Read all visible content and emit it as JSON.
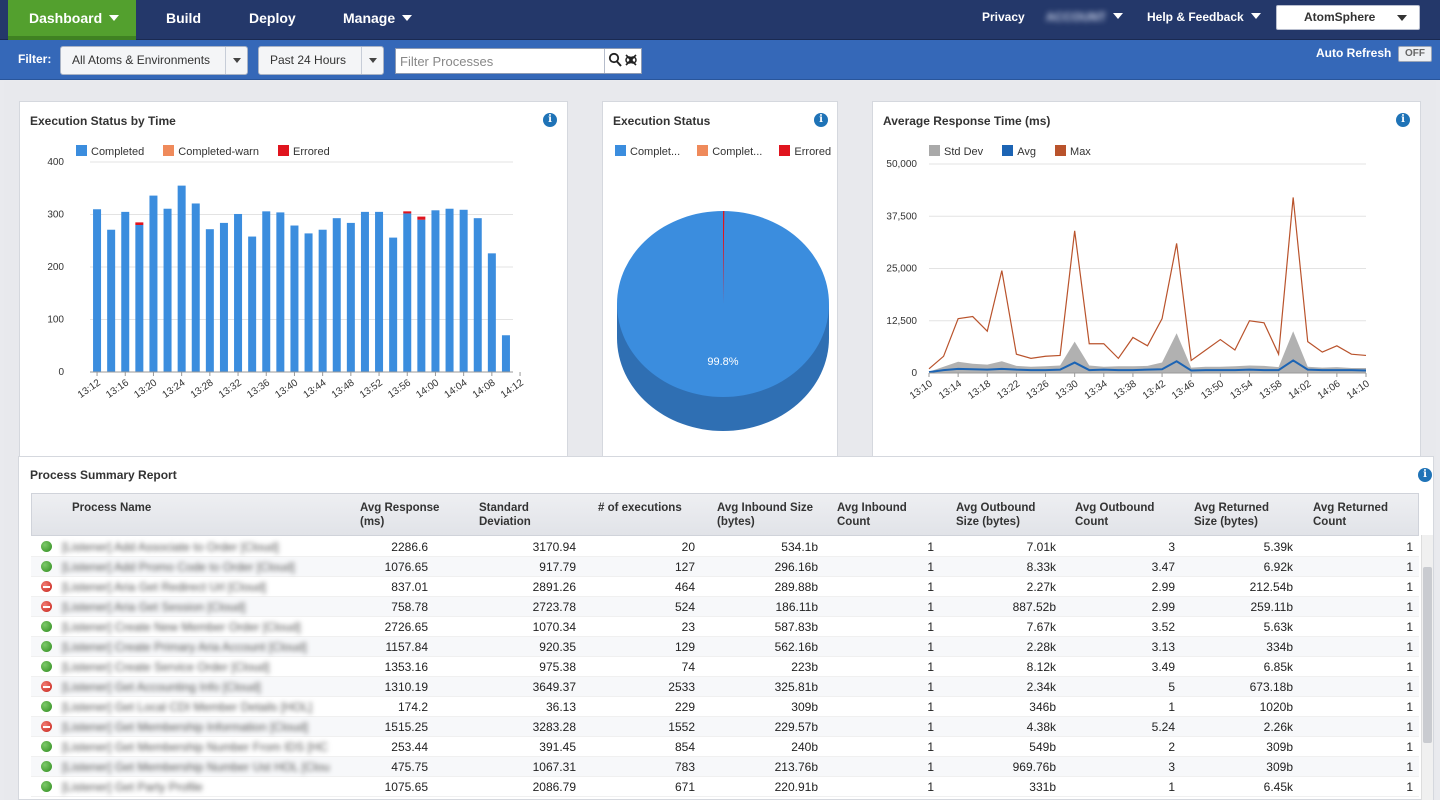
{
  "nav": {
    "dashboard": "Dashboard",
    "build": "Build",
    "deploy": "Deploy",
    "manage": "Manage",
    "privacy": "Privacy",
    "account_blurred": "ACCOUNT",
    "help": "Help & Feedback",
    "atomsphere": "AtomSphere"
  },
  "filter": {
    "label": "Filter:",
    "atoms": "All Atoms & Environments",
    "time": "Past 24 Hours",
    "search_placeholder": "Filter Processes",
    "auto_refresh": "Auto Refresh",
    "toggle": "OFF"
  },
  "colors": {
    "completed": "#3b8dde",
    "completed_warn": "#ef8a5b",
    "errored": "#e0141e",
    "std_dev": "#a9a9a9",
    "avg": "#1c64b4",
    "max": "#b9532c"
  },
  "panels": {
    "status_by_time_title": "Execution Status by Time",
    "status_title": "Execution Status",
    "response_title": "Average Response Time (ms)",
    "summary_title": "Process Summary Report",
    "info_glyph": "i"
  },
  "chart_data": [
    {
      "type": "bar",
      "title": "Execution Status by Time",
      "legend": [
        "Completed",
        "Completed-warn",
        "Errored"
      ],
      "ylim": [
        0,
        400
      ],
      "yticks": [
        "400",
        "300",
        "200",
        "100",
        "0"
      ],
      "xtick_labels": [
        "13:12",
        "13:16",
        "13:20",
        "13:24",
        "13:28",
        "13:32",
        "13:36",
        "13:40",
        "13:44",
        "13:48",
        "13:52",
        "13:56",
        "14:00",
        "14:04",
        "14:08",
        "14:12"
      ],
      "series": [
        {
          "name": "Completed",
          "values": [
            310,
            271,
            305,
            280,
            336,
            311,
            355,
            321,
            272,
            284,
            301,
            258,
            306,
            304,
            279,
            264,
            271,
            293,
            284,
            305,
            305,
            256,
            302,
            290,
            308,
            311,
            309,
            293,
            226,
            70
          ]
        },
        {
          "name": "Errored",
          "values": [
            0,
            0,
            0,
            5,
            0,
            0,
            0,
            0,
            0,
            0,
            0,
            0,
            0,
            0,
            0,
            0,
            0,
            0,
            0,
            0,
            0,
            0,
            4,
            6,
            0,
            0,
            0,
            0,
            0,
            0
          ]
        }
      ]
    },
    {
      "type": "pie",
      "title": "Execution Status",
      "legend": [
        "Complet...",
        "Complet...",
        "Errored"
      ],
      "slices": [
        {
          "name": "Completed",
          "value": 99.8,
          "label": "99.8%"
        },
        {
          "name": "Completed-warn",
          "value": 0.0,
          "label": ""
        },
        {
          "name": "Errored",
          "value": 0.2,
          "label": ""
        }
      ]
    },
    {
      "type": "line",
      "title": "Average Response Time (ms)",
      "legend": [
        "Std Dev",
        "Avg",
        "Max"
      ],
      "ylim": [
        0,
        50000
      ],
      "yticks": [
        "50,000",
        "37,500",
        "25,000",
        "12,500",
        "0"
      ],
      "xtick_labels": [
        "13:10",
        "13:14",
        "13:18",
        "13:22",
        "13:26",
        "13:30",
        "13:34",
        "13:38",
        "13:42",
        "13:46",
        "13:50",
        "13:54",
        "13:58",
        "14:02",
        "14:06",
        "14:10"
      ],
      "series": [
        {
          "name": "Max",
          "values": [
            1000,
            4000,
            13000,
            13500,
            10000,
            24500,
            4500,
            3500,
            4000,
            4200,
            34000,
            7000,
            7000,
            3500,
            8500,
            6500,
            13000,
            31000,
            3000,
            5500,
            8000,
            5500,
            12500,
            12000,
            4500,
            42000,
            7500,
            5000,
            6500,
            4500,
            4200
          ]
        },
        {
          "name": "Std Dev",
          "values": [
            300,
            1500,
            2700,
            2200,
            2000,
            2800,
            1700,
            1500,
            1600,
            1800,
            7500,
            1800,
            1500,
            1600,
            1600,
            1700,
            2500,
            9500,
            1300,
            1500,
            1500,
            1600,
            1800,
            1700,
            1400,
            10000,
            1500,
            1300,
            1400,
            1200,
            1200
          ]
        },
        {
          "name": "Avg",
          "values": [
            200,
            700,
            1000,
            900,
            800,
            1000,
            800,
            700,
            700,
            800,
            2500,
            700,
            800,
            700,
            700,
            800,
            900,
            2800,
            600,
            700,
            700,
            700,
            800,
            700,
            700,
            3000,
            800,
            700,
            700,
            700,
            600
          ]
        }
      ]
    }
  ],
  "table": {
    "headers": [
      "Process Name",
      "Avg Response (ms)",
      "Standard Deviation",
      "# of executions",
      "Avg Inbound Size (bytes)",
      "Avg Inbound Count",
      "Avg Outbound Size (bytes)",
      "Avg Outbound Count",
      "Avg Returned Size (bytes)",
      "Avg Returned Count"
    ],
    "rows": [
      {
        "status": "ok",
        "name": "[Listener] Add Associate to Order [Cloud]",
        "cells": [
          "2286.6",
          "3170.94",
          "20",
          "534.1b",
          "1",
          "7.01k",
          "3",
          "5.39k",
          "1"
        ]
      },
      {
        "status": "ok",
        "name": "[Listener] Add Promo Code to Order [Cloud]",
        "cells": [
          "1076.65",
          "917.79",
          "127",
          "296.16b",
          "1",
          "8.33k",
          "3.47",
          "6.92k",
          "1"
        ]
      },
      {
        "status": "err",
        "name": "[Listener] Aria Get Redirect Url [Cloud]",
        "cells": [
          "837.01",
          "2891.26",
          "464",
          "289.88b",
          "1",
          "2.27k",
          "2.99",
          "212.54b",
          "1"
        ]
      },
      {
        "status": "err",
        "name": "[Listener] Aria Get Session [Cloud]",
        "cells": [
          "758.78",
          "2723.78",
          "524",
          "186.11b",
          "1",
          "887.52b",
          "2.99",
          "259.11b",
          "1"
        ]
      },
      {
        "status": "ok",
        "name": "[Listener] Create New Member Order [Cloud]",
        "cells": [
          "2726.65",
          "1070.34",
          "23",
          "587.83b",
          "1",
          "7.67k",
          "3.52",
          "5.63k",
          "1"
        ]
      },
      {
        "status": "ok",
        "name": "[Listener] Create Primary Aria Account [Cloud]",
        "cells": [
          "1157.84",
          "920.35",
          "129",
          "562.16b",
          "1",
          "2.28k",
          "3.13",
          "334b",
          "1"
        ]
      },
      {
        "status": "ok",
        "name": "[Listener] Create Service Order [Cloud]",
        "cells": [
          "1353.16",
          "975.38",
          "74",
          "223b",
          "1",
          "8.12k",
          "3.49",
          "6.85k",
          "1"
        ]
      },
      {
        "status": "err",
        "name": "[Listener] Get Accounting Info [Cloud]",
        "cells": [
          "1310.19",
          "3649.37",
          "2533",
          "325.81b",
          "1",
          "2.34k",
          "5",
          "673.18b",
          "1"
        ]
      },
      {
        "status": "ok",
        "name": "[Listener] Get Local CDI Member Details [HOL]",
        "cells": [
          "174.2",
          "36.13",
          "229",
          "309b",
          "1",
          "346b",
          "1",
          "1020b",
          "1"
        ]
      },
      {
        "status": "err",
        "name": "[Listener] Get Membership Information [Cloud]",
        "cells": [
          "1515.25",
          "3283.28",
          "1552",
          "229.57b",
          "1",
          "4.38k",
          "5.24",
          "2.26k",
          "1"
        ]
      },
      {
        "status": "ok",
        "name": "[Listener] Get Membership Number From IDS [HC",
        "cells": [
          "253.44",
          "391.45",
          "854",
          "240b",
          "1",
          "549b",
          "2",
          "309b",
          "1"
        ]
      },
      {
        "status": "ok",
        "name": "[Listener] Get Membership Number Ust HOL [Clou",
        "cells": [
          "475.75",
          "1067.31",
          "783",
          "213.76b",
          "1",
          "969.76b",
          "3",
          "309b",
          "1"
        ]
      },
      {
        "status": "ok",
        "name": "[Listener] Get Party Profile",
        "cells": [
          "1075.65",
          "2086.79",
          "671",
          "220.91b",
          "1",
          "331b",
          "1",
          "6.45k",
          "1"
        ]
      }
    ]
  }
}
